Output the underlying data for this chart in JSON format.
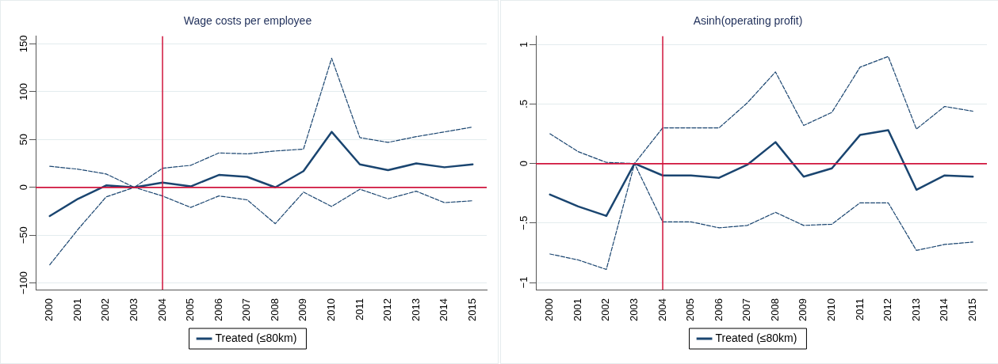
{
  "chart_data": [
    {
      "type": "line",
      "title": "Wage costs per employee",
      "x": [
        2000,
        2001,
        2002,
        2003,
        2004,
        2005,
        2006,
        2007,
        2008,
        2009,
        2010,
        2011,
        2012,
        2013,
        2014,
        2015
      ],
      "xlim": [
        1999.5,
        2015.5
      ],
      "xticks": [
        2000,
        2001,
        2002,
        2003,
        2004,
        2005,
        2006,
        2007,
        2008,
        2009,
        2010,
        2011,
        2012,
        2013,
        2014,
        2015
      ],
      "ylim": [
        -107,
        158
      ],
      "yticks": [
        {
          "value": -100,
          "label": "−100"
        },
        {
          "value": -50,
          "label": "−50"
        },
        0,
        50,
        100,
        150
      ],
      "grid": "y",
      "legend": "bottom",
      "series": [
        {
          "name": "Treated (≤80km)",
          "color": "#1a4570",
          "line_style": "solid",
          "values": [
            -30,
            -12,
            2,
            0,
            5,
            1,
            13,
            11,
            0,
            17,
            58,
            24,
            18,
            25,
            21,
            24
          ]
        },
        {
          "color": "#1a4570",
          "line_style": "dashed",
          "values": [
            22,
            19,
            14,
            0,
            20,
            23,
            36,
            35,
            38,
            40,
            135,
            52,
            47,
            53,
            58,
            63
          ]
        },
        {
          "color": "#1a4570",
          "line_style": "dashed",
          "values": [
            -81,
            -44,
            -10,
            0,
            -9,
            -21,
            -9,
            -13,
            -38,
            -5,
            -20,
            -2,
            -12,
            -4,
            -16,
            -14
          ]
        }
      ],
      "ref_lines": [
        {
          "axis": "x",
          "value": 2004,
          "color": "#d0143c"
        },
        {
          "axis": "y",
          "value": 0,
          "color": "#d0143c"
        }
      ]
    },
    {
      "type": "line",
      "title": "Asinh(operating profit)",
      "x": [
        2000,
        2001,
        2002,
        2003,
        2004,
        2005,
        2006,
        2007,
        2008,
        2009,
        2010,
        2011,
        2012,
        2013,
        2014,
        2015
      ],
      "xlim": [
        1999.5,
        2015.5
      ],
      "xticks": [
        2000,
        2001,
        2002,
        2003,
        2004,
        2005,
        2006,
        2007,
        2008,
        2009,
        2010,
        2011,
        2012,
        2013,
        2014,
        2015
      ],
      "ylim": [
        -1.06,
        1.07
      ],
      "yticks": [
        {
          "value": -1,
          "label": "−1"
        },
        {
          "value": -0.5,
          "label": "−.5"
        },
        0,
        {
          "value": 0.5,
          "label": ".5"
        },
        1
      ],
      "grid": "y",
      "legend": "bottom",
      "series": [
        {
          "name": "Treated (≤80km)",
          "color": "#1a4570",
          "line_style": "solid",
          "values": [
            -0.26,
            -0.36,
            -0.44,
            0,
            -0.1,
            -0.1,
            -0.12,
            -0.01,
            0.18,
            -0.11,
            -0.04,
            0.24,
            0.28,
            -0.22,
            -0.1,
            -0.11
          ]
        },
        {
          "color": "#1a4570",
          "line_style": "dashed",
          "values": [
            0.25,
            0.1,
            0.01,
            0,
            0.3,
            0.3,
            0.3,
            0.51,
            0.77,
            0.32,
            0.43,
            0.81,
            0.9,
            0.29,
            0.48,
            0.44
          ]
        },
        {
          "color": "#1a4570",
          "line_style": "dashed",
          "values": [
            -0.76,
            -0.81,
            -0.89,
            0,
            -0.49,
            -0.49,
            -0.54,
            -0.52,
            -0.41,
            -0.52,
            -0.51,
            -0.33,
            -0.33,
            -0.73,
            -0.68,
            -0.66
          ]
        }
      ],
      "ref_lines": [
        {
          "axis": "x",
          "value": 2004,
          "color": "#d0143c"
        },
        {
          "axis": "y",
          "value": 0,
          "color": "#d0143c"
        }
      ]
    }
  ]
}
